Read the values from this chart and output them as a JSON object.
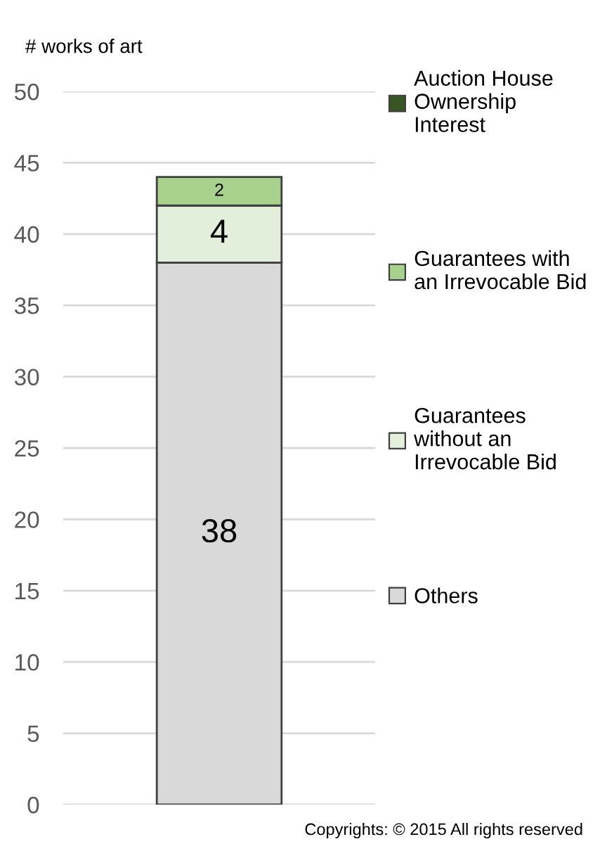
{
  "chart_data": {
    "type": "bar",
    "stacked": true,
    "categories": [
      null
    ],
    "ylabel": "# works of art",
    "ylim": [
      0,
      50
    ],
    "yticks": [
      0,
      5,
      10,
      15,
      20,
      25,
      30,
      35,
      40,
      45,
      50
    ],
    "grid": "y",
    "legend": "right",
    "series": [
      {
        "name": "Others",
        "color": "#d9d9d9",
        "values": [
          38
        ],
        "value_labels": [
          "38"
        ]
      },
      {
        "name": "Guarantees\nwithout an\nIrrevocable Bid",
        "color": "#e2efda",
        "values": [
          4
        ],
        "value_labels": [
          "4"
        ]
      },
      {
        "name": "Guarantees with\nan Irrevocable Bid",
        "color": "#a9d18e",
        "values": [
          2
        ],
        "value_labels": [
          "2"
        ]
      },
      {
        "name": "Auction House\nOwnership\nInterest",
        "color": "#375623",
        "values": [
          0
        ],
        "value_labels": [
          null
        ]
      }
    ],
    "annotations": [
      "Copyrights: © 2015 All rights reserved"
    ]
  }
}
